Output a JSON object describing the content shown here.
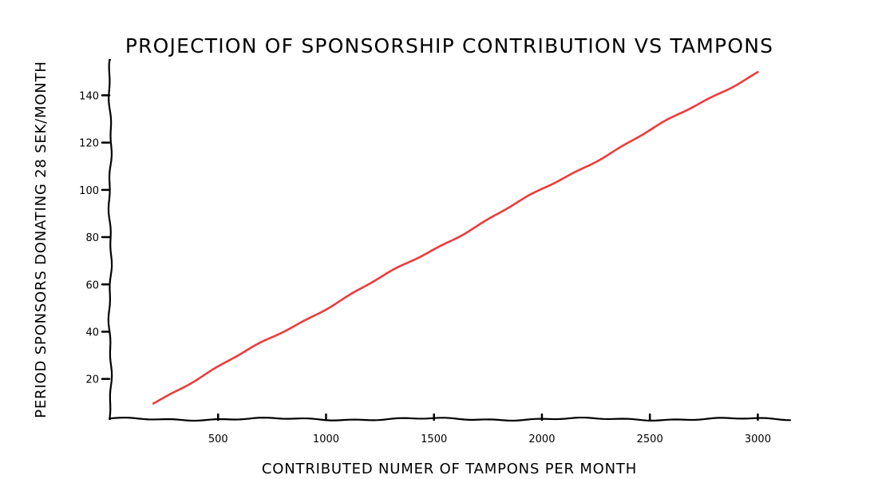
{
  "chart_data": {
    "type": "line",
    "title": "PROJECTION OF SPONSORSHIP CONTRIBUTION VS TAMPONS",
    "xlabel": "CONTRIBUTED NUMER OF TAMPONS PER MONTH",
    "ylabel": "PERIOD SPONSORS DONATING 28 SEK/MONTH",
    "xlim": [
      0,
      3150
    ],
    "ylim": [
      3,
      155
    ],
    "x_ticks": [
      {
        "value": 500,
        "label": "500"
      },
      {
        "value": 1000,
        "label": "1000"
      },
      {
        "value": 1500,
        "label": "1500"
      },
      {
        "value": 2000,
        "label": "2000"
      },
      {
        "value": 2500,
        "label": "2500"
      },
      {
        "value": 3000,
        "label": "3000"
      }
    ],
    "y_ticks": [
      {
        "value": 20,
        "label": "20"
      },
      {
        "value": 40,
        "label": "40"
      },
      {
        "value": 60,
        "label": "60"
      },
      {
        "value": 80,
        "label": "80"
      },
      {
        "value": 100,
        "label": "100"
      },
      {
        "value": 120,
        "label": "120"
      },
      {
        "value": 140,
        "label": "140"
      }
    ],
    "grid": false,
    "legend": "none",
    "series": [
      {
        "color": "#ee3b3b",
        "x": [
          200,
          500,
          1000,
          1500,
          2000,
          2500,
          3000
        ],
        "y": [
          10,
          25,
          50,
          75,
          100,
          125,
          150
        ]
      }
    ]
  }
}
